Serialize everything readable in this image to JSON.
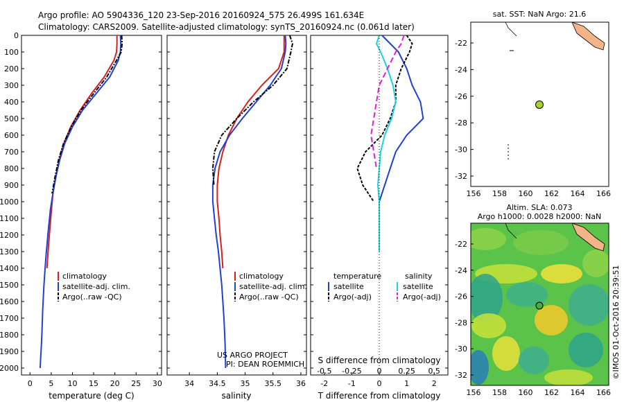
{
  "header": {
    "line1": "Argo profile: AO 5904336_120 23-Sep-2016 20160924_575 26.499S 161.634E",
    "line2": "Climatology: CARS2009. Satellite-adjusted climatology: synTS_20160924.nc (0.061d later)"
  },
  "colors": {
    "climatology": "#d81e1e",
    "satellite": "#1f3fd6",
    "argo": "#000000",
    "sat_salinity": "#19d3e0",
    "argo_salinity": "#e01ee0",
    "land": "#f4b48a",
    "marker": "#a8d12a"
  },
  "depth_axis": {
    "ticks": [
      "0",
      "100",
      "200",
      "300",
      "400",
      "500",
      "600",
      "700",
      "800",
      "900",
      "1000",
      "1100",
      "1200",
      "1300",
      "1400",
      "1500",
      "1600",
      "1700",
      "1800",
      "1900",
      "2000"
    ]
  },
  "panels": {
    "temperature": {
      "xlabel": "temperature (deg C)",
      "xticks": [
        "0",
        "5",
        "10",
        "15",
        "20",
        "25",
        "30"
      ],
      "legend": [
        "climatology",
        "satellite-adj. clim.",
        "Argo(..raw -QC)"
      ]
    },
    "salinity": {
      "xlabel": "salinity",
      "xticks": [
        "34",
        "34.5",
        "35",
        "35.5",
        "36"
      ],
      "legend": [
        "climatology",
        "satellite-adj. clim.",
        "Argo(..raw -QC)"
      ],
      "credit1": "US ARGO PROJECT",
      "credit2": "PI: DEAN ROEMMICH"
    },
    "difference": {
      "top_label": "S difference from climatology",
      "top_ticks": [
        "-0.5",
        "-0.25",
        "0",
        "0.25",
        "0.5"
      ],
      "xlabel": "T difference from climatology",
      "xticks": [
        "-2",
        "-1",
        "0",
        "1",
        "2"
      ],
      "legend_temp_title": "temperature",
      "legend_sal_title": "salinity",
      "legend_temp": [
        "satellite",
        "Argo(-adj)"
      ],
      "legend_sal": [
        "satellite",
        "Argo(-adj)"
      ]
    }
  },
  "sst_map": {
    "title": "sat. SST: NaN Argo: 21.6",
    "yticks": [
      "-22",
      "-24",
      "-26",
      "-28",
      "-30",
      "-32"
    ],
    "xticks": [
      "156",
      "158",
      "160",
      "162",
      "164",
      "166"
    ]
  },
  "sla_map": {
    "title1": "Altim. SLA: 0.073",
    "title2": "Argo h1000: 0.0028 h2000: NaN",
    "yticks": [
      "-22",
      "-24",
      "-26",
      "-28",
      "-30",
      "-32"
    ],
    "xticks": [
      "156",
      "158",
      "160",
      "162",
      "164",
      "166"
    ],
    "side_label": "©IMOS 01-Oct-2016 20:39:51"
  },
  "chart_data": [
    {
      "type": "line",
      "title": "",
      "xlabel": "temperature (deg C)",
      "ylabel": "",
      "xlim": [
        -2,
        31
      ],
      "ylim": [
        2080,
        0
      ],
      "series": [
        {
          "name": "climatology",
          "x": [
            20.5,
            20.5,
            20.4,
            19.8,
            17.5,
            14.5,
            11.8,
            9.6,
            8.0,
            6.9,
            6.1,
            5.4,
            4.9,
            4.4,
            4.0
          ],
          "y": [
            0,
            50,
            100,
            150,
            250,
            350,
            450,
            550,
            650,
            750,
            850,
            950,
            1100,
            1250,
            1400
          ]
        },
        {
          "name": "satellite-adj. clim.",
          "x": [
            21.3,
            21.4,
            21.3,
            20.8,
            18.8,
            15.6,
            12.4,
            10.0,
            8.2,
            7.0,
            6.1,
            5.4,
            4.8,
            4.2,
            3.7,
            3.3,
            3.0,
            2.8,
            2.6,
            2.5,
            2.4
          ],
          "y": [
            0,
            50,
            100,
            150,
            250,
            350,
            450,
            550,
            650,
            750,
            850,
            950,
            1050,
            1200,
            1350,
            1500,
            1650,
            1800,
            1900,
            1950,
            2000
          ]
        },
        {
          "name": "Argo(..raw -QC)",
          "x": [
            21.6,
            21.7,
            21.5,
            20.4,
            18.1,
            15.0,
            12.0,
            9.7,
            7.9,
            6.7,
            5.9,
            5.2
          ],
          "y": [
            0,
            50,
            100,
            150,
            250,
            350,
            450,
            550,
            650,
            750,
            850,
            950
          ]
        }
      ]
    },
    {
      "type": "line",
      "title": "",
      "xlabel": "salinity",
      "ylabel": "",
      "xlim": [
        33.6,
        36.1
      ],
      "ylim": [
        2080,
        0
      ],
      "series": [
        {
          "name": "climatology",
          "x": [
            35.7,
            35.7,
            35.7,
            35.6,
            35.3,
            35.05,
            34.85,
            34.7,
            34.6,
            34.53,
            34.5,
            34.5,
            34.53,
            34.55,
            34.58,
            34.6
          ],
          "y": [
            0,
            50,
            100,
            200,
            300,
            400,
            500,
            600,
            700,
            800,
            900,
            1000,
            1100,
            1200,
            1300,
            1400
          ]
        },
        {
          "name": "satellite-adj. clim.",
          "x": [
            35.72,
            35.73,
            35.72,
            35.65,
            35.45,
            35.2,
            34.95,
            34.72,
            34.55,
            34.46,
            34.42,
            34.42,
            34.45,
            34.48,
            34.52,
            34.55,
            34.58,
            34.6,
            34.62,
            34.64,
            34.65
          ],
          "y": [
            0,
            50,
            100,
            200,
            300,
            400,
            500,
            600,
            700,
            800,
            900,
            1000,
            1100,
            1200,
            1300,
            1400,
            1500,
            1600,
            1700,
            1850,
            2000
          ]
        },
        {
          "name": "Argo(..raw -QC)",
          "x": [
            35.8,
            35.85,
            35.82,
            35.75,
            35.5,
            35.15,
            34.85,
            34.58,
            34.45,
            34.42,
            34.44
          ],
          "y": [
            0,
            50,
            100,
            200,
            300,
            400,
            500,
            600,
            700,
            800,
            900
          ]
        }
      ]
    },
    {
      "type": "line",
      "title": "",
      "xlabel": "T difference from climatology",
      "ylabel": "",
      "xlim": [
        -2.5,
        2.5
      ],
      "ylim": [
        2080,
        0
      ],
      "series": [
        {
          "name": "temperature satellite",
          "x": [
            0.1,
            0.4,
            0.7,
            1.0,
            1.2,
            1.5,
            1.6,
            1.0,
            0.6,
            0.4,
            0.2,
            0.0
          ],
          "y": [
            0,
            50,
            100,
            200,
            300,
            400,
            500,
            600,
            700,
            800,
            900,
            1000
          ]
        },
        {
          "name": "temperature Argo(-adj)",
          "x": [
            1.0,
            1.2,
            1.1,
            0.8,
            0.6,
            0.6,
            0.4,
            0.1,
            -0.5,
            -0.8,
            -0.6,
            -0.4,
            -0.2
          ],
          "y": [
            0,
            50,
            100,
            200,
            300,
            400,
            500,
            600,
            700,
            800,
            900,
            950,
            1000
          ]
        },
        {
          "name": "salinity satellite",
          "x": [
            0.0,
            -0.1,
            0.05,
            0.3,
            0.5,
            0.6,
            0.45,
            0.2,
            0.05,
            0.0,
            -0.05,
            0.0,
            0.0,
            0.0,
            0.0
          ],
          "y": [
            0,
            50,
            100,
            200,
            300,
            400,
            500,
            600,
            700,
            800,
            900,
            1000,
            1100,
            1200,
            1300
          ]
        },
        {
          "name": "salinity Argo(-adj)",
          "x": [
            0.9,
            0.8,
            0.6,
            0.3,
            0.0,
            -0.1,
            -0.2,
            -0.3,
            -0.2,
            -0.1
          ],
          "y": [
            0,
            50,
            100,
            200,
            300,
            400,
            500,
            600,
            700,
            800
          ]
        }
      ]
    }
  ]
}
